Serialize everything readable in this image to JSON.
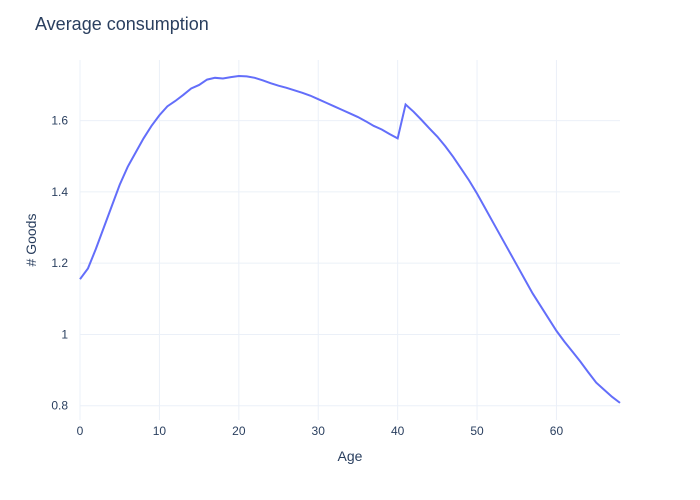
{
  "chart_data": {
    "type": "line",
    "title": "Average consumption",
    "xlabel": "Age",
    "ylabel": "# Goods",
    "xlim": [
      0,
      68
    ],
    "ylim": [
      0.76,
      1.77
    ],
    "x_ticks": [
      0,
      10,
      20,
      30,
      40,
      50,
      60
    ],
    "y_ticks": [
      0.8,
      1,
      1.2,
      1.4,
      1.6
    ],
    "y_tick_labels": [
      "0.8",
      "1",
      "1.2",
      "1.4",
      "1.6"
    ],
    "grid": true,
    "line_color": "#636efa",
    "series": [
      {
        "x": [
          0,
          1,
          2,
          3,
          4,
          5,
          6,
          7,
          8,
          9,
          10,
          11,
          12,
          13,
          14,
          15,
          16,
          17,
          18,
          19,
          20,
          21,
          22,
          23,
          24,
          25,
          26,
          27,
          28,
          29,
          30,
          31,
          32,
          33,
          34,
          35,
          36,
          37,
          38,
          39,
          40,
          41,
          42,
          43,
          44,
          45,
          46,
          47,
          48,
          49,
          50,
          51,
          52,
          53,
          54,
          55,
          56,
          57,
          58,
          59,
          60,
          61,
          62,
          63,
          64,
          65,
          66,
          67,
          68
        ],
        "y": [
          1.155,
          1.185,
          1.24,
          1.3,
          1.36,
          1.42,
          1.47,
          1.51,
          1.55,
          1.585,
          1.615,
          1.64,
          1.655,
          1.672,
          1.69,
          1.7,
          1.715,
          1.72,
          1.718,
          1.722,
          1.725,
          1.724,
          1.72,
          1.713,
          1.705,
          1.698,
          1.692,
          1.685,
          1.678,
          1.67,
          1.66,
          1.65,
          1.64,
          1.63,
          1.62,
          1.61,
          1.598,
          1.585,
          1.575,
          1.562,
          1.55,
          1.645,
          1.625,
          1.602,
          1.578,
          1.555,
          1.528,
          1.498,
          1.465,
          1.432,
          1.395,
          1.355,
          1.315,
          1.275,
          1.235,
          1.195,
          1.155,
          1.115,
          1.08,
          1.045,
          1.01,
          0.98,
          0.952,
          0.924,
          0.894,
          0.865,
          0.845,
          0.825,
          0.808
        ]
      }
    ]
  }
}
